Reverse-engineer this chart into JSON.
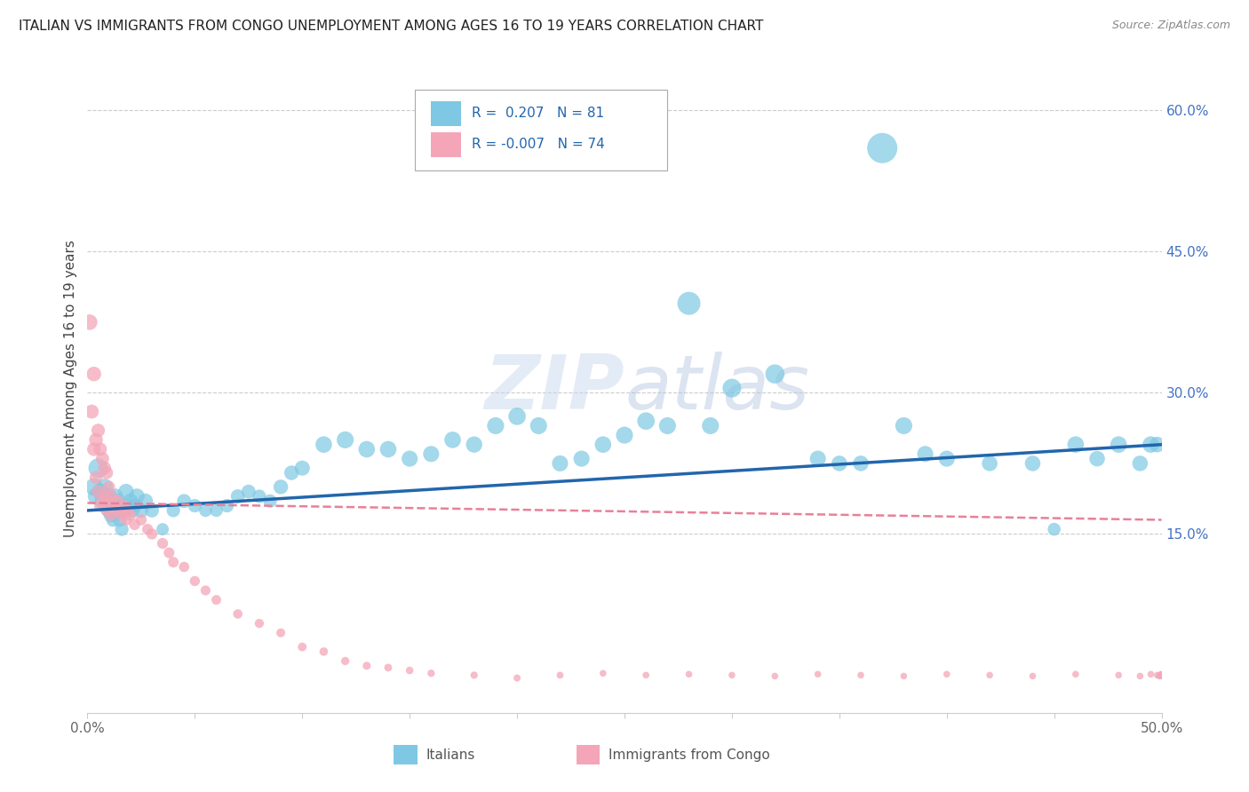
{
  "title": "ITALIAN VS IMMIGRANTS FROM CONGO UNEMPLOYMENT AMONG AGES 16 TO 19 YEARS CORRELATION CHART",
  "source": "Source: ZipAtlas.com",
  "ylabel": "Unemployment Among Ages 16 to 19 years",
  "watermark": "ZIPatlas",
  "xlim": [
    0.0,
    0.5
  ],
  "ylim": [
    -0.04,
    0.65
  ],
  "yticks_right": [
    0.15,
    0.3,
    0.45,
    0.6
  ],
  "ytick_labels_right": [
    "15.0%",
    "30.0%",
    "45.0%",
    "60.0%"
  ],
  "xtick_positions": [
    0.0,
    0.05,
    0.1,
    0.15,
    0.2,
    0.25,
    0.3,
    0.35,
    0.4,
    0.45,
    0.5
  ],
  "xtick_labels": [
    "0.0%",
    "",
    "",
    "",
    "",
    "",
    "",
    "",
    "",
    "",
    "50.0%"
  ],
  "grid_color": "#cccccc",
  "background_color": "#ffffff",
  "blue_color": "#7ec8e3",
  "pink_color": "#f4a6b8",
  "blue_line_color": "#2166ac",
  "pink_line_color": "#e8809a",
  "legend_R_blue": "0.207",
  "legend_N_blue": "81",
  "legend_R_pink": "-0.007",
  "legend_N_pink": "74",
  "blue_trend": [
    0.0,
    0.5,
    0.175,
    0.245
  ],
  "pink_trend": [
    0.0,
    0.5,
    0.183,
    0.165
  ],
  "italians_x": [
    0.003,
    0.004,
    0.005,
    0.006,
    0.007,
    0.008,
    0.009,
    0.01,
    0.01,
    0.011,
    0.011,
    0.012,
    0.012,
    0.013,
    0.013,
    0.014,
    0.015,
    0.015,
    0.016,
    0.016,
    0.017,
    0.018,
    0.019,
    0.02,
    0.021,
    0.022,
    0.023,
    0.025,
    0.027,
    0.03,
    0.035,
    0.04,
    0.045,
    0.05,
    0.055,
    0.06,
    0.065,
    0.07,
    0.075,
    0.08,
    0.085,
    0.09,
    0.095,
    0.1,
    0.11,
    0.12,
    0.13,
    0.14,
    0.15,
    0.16,
    0.17,
    0.18,
    0.19,
    0.2,
    0.21,
    0.22,
    0.23,
    0.24,
    0.25,
    0.26,
    0.27,
    0.28,
    0.29,
    0.3,
    0.32,
    0.34,
    0.35,
    0.36,
    0.37,
    0.38,
    0.39,
    0.4,
    0.42,
    0.44,
    0.45,
    0.46,
    0.47,
    0.48,
    0.49,
    0.495,
    0.498
  ],
  "italians_y": [
    0.2,
    0.19,
    0.22,
    0.195,
    0.185,
    0.2,
    0.185,
    0.175,
    0.19,
    0.17,
    0.185,
    0.165,
    0.18,
    0.175,
    0.19,
    0.185,
    0.165,
    0.18,
    0.155,
    0.175,
    0.175,
    0.195,
    0.18,
    0.185,
    0.175,
    0.18,
    0.19,
    0.175,
    0.185,
    0.175,
    0.155,
    0.175,
    0.185,
    0.18,
    0.175,
    0.175,
    0.18,
    0.19,
    0.195,
    0.19,
    0.185,
    0.2,
    0.215,
    0.22,
    0.245,
    0.25,
    0.24,
    0.24,
    0.23,
    0.235,
    0.25,
    0.245,
    0.265,
    0.275,
    0.265,
    0.225,
    0.23,
    0.245,
    0.255,
    0.27,
    0.265,
    0.395,
    0.265,
    0.305,
    0.32,
    0.23,
    0.225,
    0.225,
    0.56,
    0.265,
    0.235,
    0.23,
    0.225,
    0.225,
    0.155,
    0.245,
    0.23,
    0.245,
    0.225,
    0.245,
    0.245
  ],
  "italians_size": [
    200,
    180,
    250,
    180,
    160,
    180,
    160,
    150,
    170,
    140,
    160,
    130,
    150,
    140,
    160,
    150,
    130,
    150,
    120,
    140,
    140,
    160,
    140,
    150,
    130,
    140,
    160,
    140,
    150,
    130,
    100,
    120,
    130,
    120,
    110,
    110,
    120,
    130,
    130,
    120,
    120,
    140,
    140,
    150,
    180,
    190,
    180,
    180,
    170,
    170,
    180,
    175,
    190,
    200,
    190,
    170,
    170,
    180,
    190,
    200,
    190,
    350,
    190,
    230,
    240,
    170,
    160,
    160,
    600,
    190,
    170,
    170,
    160,
    160,
    110,
    180,
    160,
    180,
    160,
    180,
    160
  ],
  "congo_x": [
    0.001,
    0.002,
    0.003,
    0.003,
    0.004,
    0.004,
    0.005,
    0.005,
    0.006,
    0.006,
    0.007,
    0.007,
    0.008,
    0.008,
    0.009,
    0.009,
    0.01,
    0.01,
    0.011,
    0.011,
    0.012,
    0.013,
    0.014,
    0.015,
    0.016,
    0.017,
    0.018,
    0.019,
    0.02,
    0.022,
    0.025,
    0.028,
    0.03,
    0.035,
    0.038,
    0.04,
    0.045,
    0.05,
    0.055,
    0.06,
    0.07,
    0.08,
    0.09,
    0.1,
    0.11,
    0.12,
    0.13,
    0.14,
    0.15,
    0.16,
    0.18,
    0.2,
    0.22,
    0.24,
    0.26,
    0.28,
    0.3,
    0.32,
    0.34,
    0.36,
    0.38,
    0.4,
    0.42,
    0.44,
    0.46,
    0.48,
    0.49,
    0.495,
    0.498,
    0.499,
    0.4995,
    0.4998,
    0.4999,
    0.49995
  ],
  "congo_y": [
    0.375,
    0.28,
    0.32,
    0.24,
    0.25,
    0.21,
    0.26,
    0.195,
    0.24,
    0.18,
    0.23,
    0.185,
    0.22,
    0.19,
    0.215,
    0.175,
    0.2,
    0.185,
    0.19,
    0.17,
    0.18,
    0.175,
    0.185,
    0.175,
    0.17,
    0.18,
    0.165,
    0.175,
    0.17,
    0.16,
    0.165,
    0.155,
    0.15,
    0.14,
    0.13,
    0.12,
    0.115,
    0.1,
    0.09,
    0.08,
    0.065,
    0.055,
    0.045,
    0.03,
    0.025,
    0.015,
    0.01,
    0.008,
    0.005,
    0.002,
    0.0,
    -0.003,
    0.0,
    0.002,
    0.0,
    0.001,
    0.0,
    -0.001,
    0.001,
    0.0,
    -0.001,
    0.001,
    0.0,
    -0.001,
    0.001,
    0.0,
    -0.001,
    0.001,
    0.0,
    -0.001,
    0.0,
    0.001,
    0.0,
    -0.001
  ],
  "congo_size": [
    160,
    130,
    140,
    120,
    125,
    110,
    120,
    105,
    115,
    100,
    115,
    100,
    110,
    100,
    105,
    95,
    100,
    95,
    100,
    90,
    95,
    90,
    95,
    88,
    88,
    88,
    85,
    85,
    85,
    82,
    82,
    80,
    80,
    78,
    75,
    75,
    70,
    68,
    65,
    62,
    58,
    55,
    52,
    50,
    48,
    45,
    42,
    40,
    38,
    36,
    35,
    33,
    32,
    30,
    30,
    30,
    30,
    30,
    30,
    30,
    30,
    30,
    30,
    30,
    30,
    30,
    30,
    30,
    30,
    30,
    30,
    30,
    30,
    30
  ]
}
